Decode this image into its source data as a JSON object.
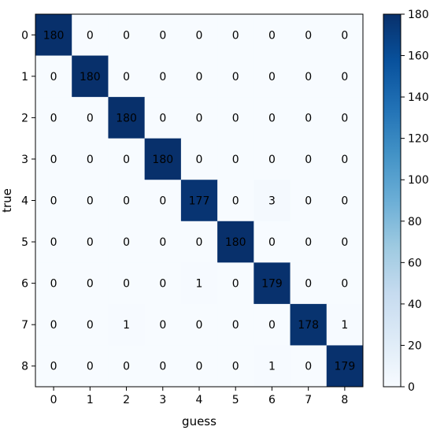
{
  "chart_data": {
    "type": "heatmap",
    "title": "",
    "xlabel": "guess",
    "ylabel": "true",
    "x_categories": [
      "0",
      "1",
      "2",
      "3",
      "4",
      "5",
      "6",
      "7",
      "8"
    ],
    "y_categories": [
      "0",
      "1",
      "2",
      "3",
      "4",
      "5",
      "6",
      "7",
      "8"
    ],
    "values": [
      [
        180,
        0,
        0,
        0,
        0,
        0,
        0,
        0,
        0
      ],
      [
        0,
        180,
        0,
        0,
        0,
        0,
        0,
        0,
        0
      ],
      [
        0,
        0,
        180,
        0,
        0,
        0,
        0,
        0,
        0
      ],
      [
        0,
        0,
        0,
        180,
        0,
        0,
        0,
        0,
        0
      ],
      [
        0,
        0,
        0,
        0,
        177,
        0,
        3,
        0,
        0
      ],
      [
        0,
        0,
        0,
        0,
        0,
        180,
        0,
        0,
        0
      ],
      [
        0,
        0,
        0,
        0,
        1,
        0,
        179,
        0,
        0
      ],
      [
        0,
        0,
        1,
        0,
        0,
        0,
        0,
        178,
        1
      ],
      [
        0,
        0,
        0,
        0,
        0,
        0,
        1,
        0,
        179
      ]
    ],
    "colorbar": {
      "range": [
        0,
        180
      ],
      "ticks": [
        "0",
        "20",
        "40",
        "60",
        "80",
        "100",
        "120",
        "140",
        "160",
        "180"
      ],
      "colormap": "Blues",
      "low_color": "#f7fbff",
      "high_color": "#08306b"
    }
  }
}
